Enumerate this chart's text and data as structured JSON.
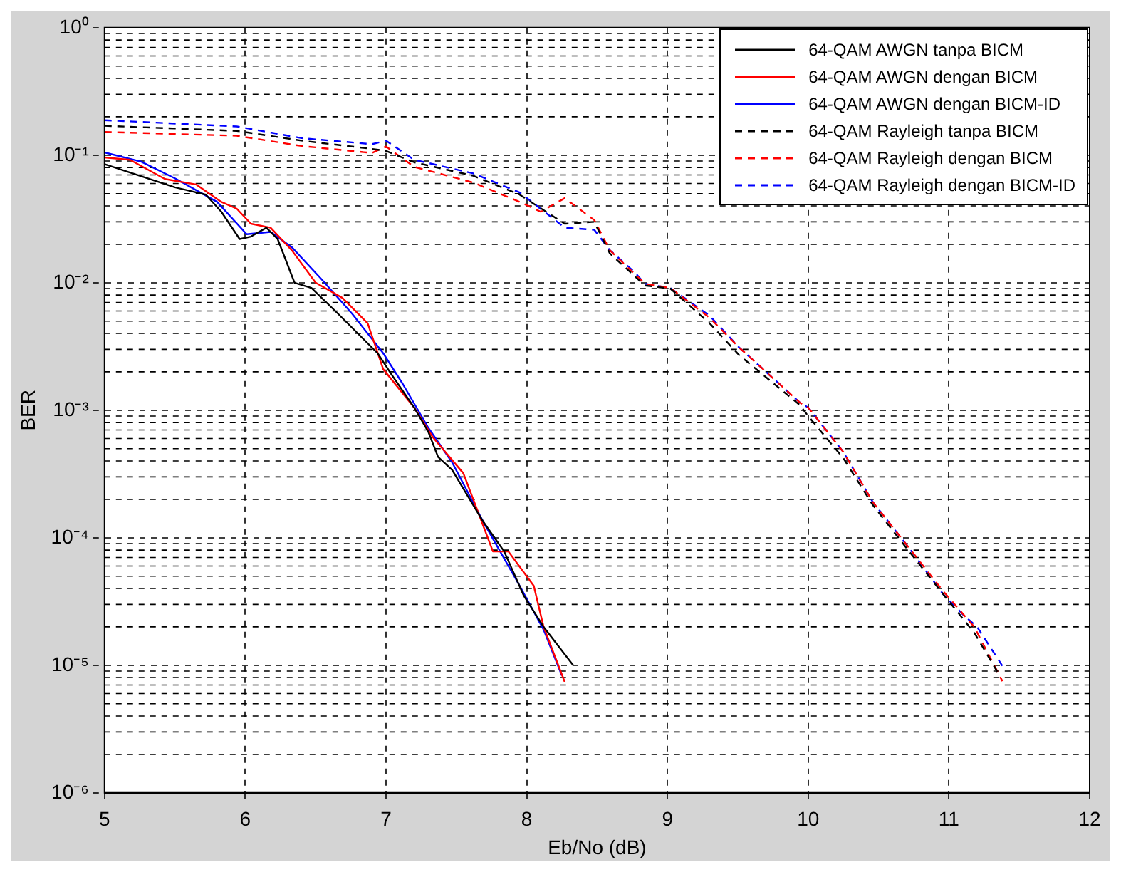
{
  "chart_data": {
    "type": "line",
    "xlabel": "Eb/No (dB)",
    "ylabel": "BER",
    "log": "y",
    "grid": true,
    "legend": "top right",
    "marker": "none",
    "xlim": [
      5,
      12
    ],
    "xticks": [
      5,
      6,
      7,
      8,
      9,
      10,
      11,
      12
    ],
    "ylim": [
      1e-06,
      1
    ],
    "yticks": [
      {
        "value": 1e-06,
        "label": "10⁻⁶"
      },
      {
        "value": 1e-05,
        "label": "10⁻⁵"
      },
      {
        "value": 0.0001,
        "label": "10⁻⁴"
      },
      {
        "value": 0.001,
        "label": "10⁻³"
      },
      {
        "value": 0.01,
        "label": "10⁻²"
      },
      {
        "value": 0.1,
        "label": "10⁻¹"
      },
      {
        "value": 1,
        "label": "10⁰"
      }
    ],
    "series": [
      {
        "name": "64-QAM AWGN tanpa BICM",
        "color": "#000000",
        "line_style": "solid",
        "x": [
          5,
          5.5,
          5.72,
          5.83,
          5.96,
          6.04,
          6.15,
          6.23,
          6.35,
          6.47,
          6.66,
          6.94,
          7.04,
          7.2,
          7.3,
          7.37,
          7.47,
          7.69,
          7.84,
          7.98,
          8.12,
          8.33
        ],
        "values": [
          0.085,
          0.056,
          0.049,
          0.036,
          0.022,
          0.023,
          0.027,
          0.022,
          0.01,
          0.0091,
          0.0057,
          0.0028,
          0.0019,
          0.00105,
          0.00068,
          0.00043,
          0.00034,
          0.000134,
          7.8e-05,
          3.5e-05,
          2e-05,
          1e-05
        ]
      },
      {
        "name": "64-QAM AWGN dengan BICM",
        "color": "#ff0000",
        "line_style": "solid",
        "x": [
          5,
          5.18,
          5.43,
          5.65,
          5.83,
          5.94,
          6.04,
          6.18,
          6.33,
          6.5,
          6.69,
          6.87,
          6.98,
          7.2,
          7.33,
          7.55,
          7.76,
          7.87,
          8.05,
          8.12,
          8.27
        ],
        "values": [
          0.096,
          0.092,
          0.065,
          0.059,
          0.043,
          0.038,
          0.029,
          0.027,
          0.018,
          0.01,
          0.0076,
          0.0048,
          0.0021,
          0.00105,
          0.00062,
          0.00032,
          7.8e-05,
          7.8e-05,
          4.2e-05,
          2e-05,
          7.4e-06
        ]
      },
      {
        "name": "64-QAM AWGN dengan BICM-ID",
        "color": "#0000ff",
        "line_style": "solid",
        "x": [
          5,
          5.26,
          5.51,
          5.8,
          6.01,
          6.18,
          6.33,
          6.54,
          6.76,
          6.98,
          7.12,
          7.3,
          7.47,
          7.69,
          7.95,
          8.12,
          8.25
        ],
        "values": [
          0.105,
          0.089,
          0.065,
          0.043,
          0.024,
          0.025,
          0.019,
          0.0107,
          0.0057,
          0.0028,
          0.0016,
          0.00073,
          0.00039,
          0.000134,
          4.2e-05,
          1.9e-05,
          8.3e-06
        ]
      },
      {
        "name": "64-QAM Rayleigh tanpa BICM",
        "color": "#000000",
        "line_style": "dashed",
        "x": [
          5,
          5.94,
          6.4,
          6.9,
          7.0,
          7.2,
          7.62,
          7.95,
          8.27,
          8.48,
          8.59,
          8.84,
          9.02,
          9.3,
          9.51,
          9.94,
          10,
          10.25,
          10.46,
          10.71,
          10.96,
          11.18,
          11.36
        ],
        "values": [
          0.17,
          0.155,
          0.13,
          0.112,
          0.108,
          0.088,
          0.069,
          0.049,
          0.029,
          0.03,
          0.017,
          0.0095,
          0.009,
          0.0048,
          0.0027,
          0.0011,
          0.0009,
          0.00042,
          0.00018,
          8e-05,
          3.6e-05,
          1.8e-05,
          8.3e-06
        ]
      },
      {
        "name": "64-QAM Rayleigh dengan BICM",
        "color": "#ff0000",
        "line_style": "dashed",
        "x": [
          5,
          5.94,
          6.4,
          6.9,
          7.0,
          7.2,
          7.62,
          7.95,
          8.1,
          8.27,
          8.48,
          8.59,
          8.84,
          9.02,
          9.3,
          9.51,
          9.94,
          10,
          10.25,
          10.46,
          10.71,
          10.96,
          11.18,
          11.38
        ],
        "values": [
          0.152,
          0.142,
          0.118,
          0.104,
          0.117,
          0.081,
          0.061,
          0.043,
          0.036,
          0.046,
          0.031,
          0.018,
          0.0098,
          0.0091,
          0.0053,
          0.0031,
          0.00115,
          0.00105,
          0.00047,
          0.00019,
          8.5e-05,
          3.8e-05,
          2e-05,
          7.5e-06
        ]
      },
      {
        "name": "64-QAM Rayleigh dengan BICM-ID",
        "color": "#0000ff",
        "line_style": "dashed",
        "x": [
          5,
          5.94,
          6.4,
          6.9,
          7.0,
          7.2,
          7.62,
          7.95,
          8.27,
          8.48,
          8.59,
          8.77,
          8.84,
          9.02,
          9.3,
          9.51,
          9.94,
          10,
          10.25,
          10.46,
          10.71,
          10.96,
          11.1,
          11.2,
          11.39
        ],
        "values": [
          0.188,
          0.168,
          0.136,
          0.122,
          0.13,
          0.092,
          0.072,
          0.051,
          0.027,
          0.026,
          0.018,
          0.012,
          0.0098,
          0.0091,
          0.0055,
          0.0031,
          0.00115,
          0.00105,
          0.00047,
          0.00019,
          8.5e-05,
          3.6e-05,
          2.5e-05,
          2e-05,
          9.5e-06
        ]
      }
    ]
  }
}
